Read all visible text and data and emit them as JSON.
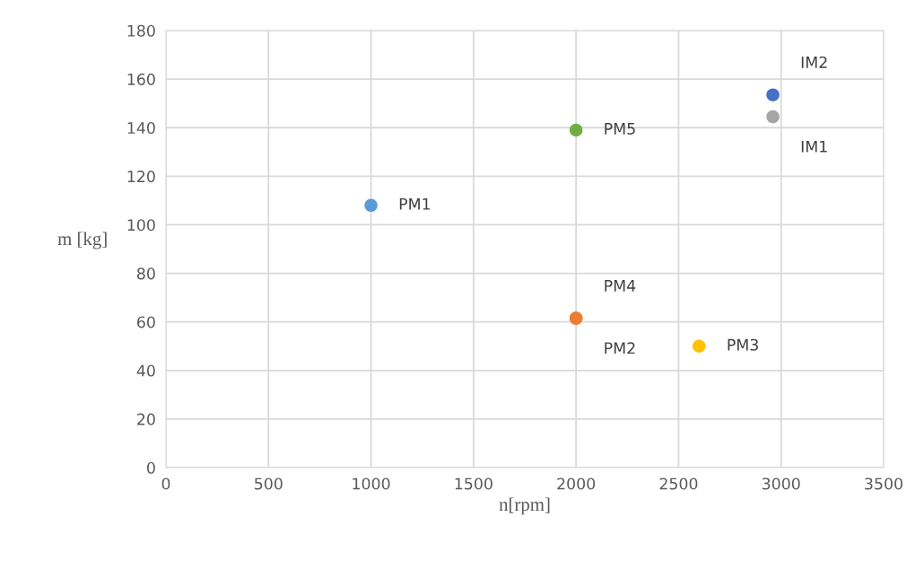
{
  "chart_data": {
    "type": "scatter",
    "xlabel": "n[rpm]",
    "ylabel": "m [kg]",
    "xlim": [
      0,
      3500
    ],
    "xticks": [
      0,
      500,
      1000,
      1500,
      2000,
      2500,
      3000,
      3500
    ],
    "ylim": [
      0,
      180
    ],
    "yticks": [
      0,
      20,
      40,
      60,
      80,
      100,
      120,
      140,
      160,
      180
    ],
    "grid": true,
    "marker": "circle",
    "series": [
      {
        "name": "PM1",
        "color": "#5b9bd5",
        "x": [
          1000
        ],
        "values": [
          108
        ]
      },
      {
        "name": "PM2",
        "color": "#ed7d31",
        "x": [
          2000
        ],
        "values": [
          61.5
        ]
      },
      {
        "name": "PM3",
        "color": "#ffc000",
        "x": [
          2600
        ],
        "values": [
          50
        ]
      },
      {
        "name": "PM4",
        "color": "#ed7d31",
        "x": [
          2000
        ],
        "values": [
          61.5
        ]
      },
      {
        "name": "PM5",
        "color": "#70ad47",
        "x": [
          2000
        ],
        "values": [
          139
        ]
      },
      {
        "name": "IM1",
        "color": "#a5a5a5",
        "x": [
          2960
        ],
        "values": [
          144.5
        ]
      },
      {
        "name": "IM2",
        "color": "#4472c4",
        "x": [
          2960
        ],
        "values": [
          153.5
        ]
      }
    ]
  }
}
